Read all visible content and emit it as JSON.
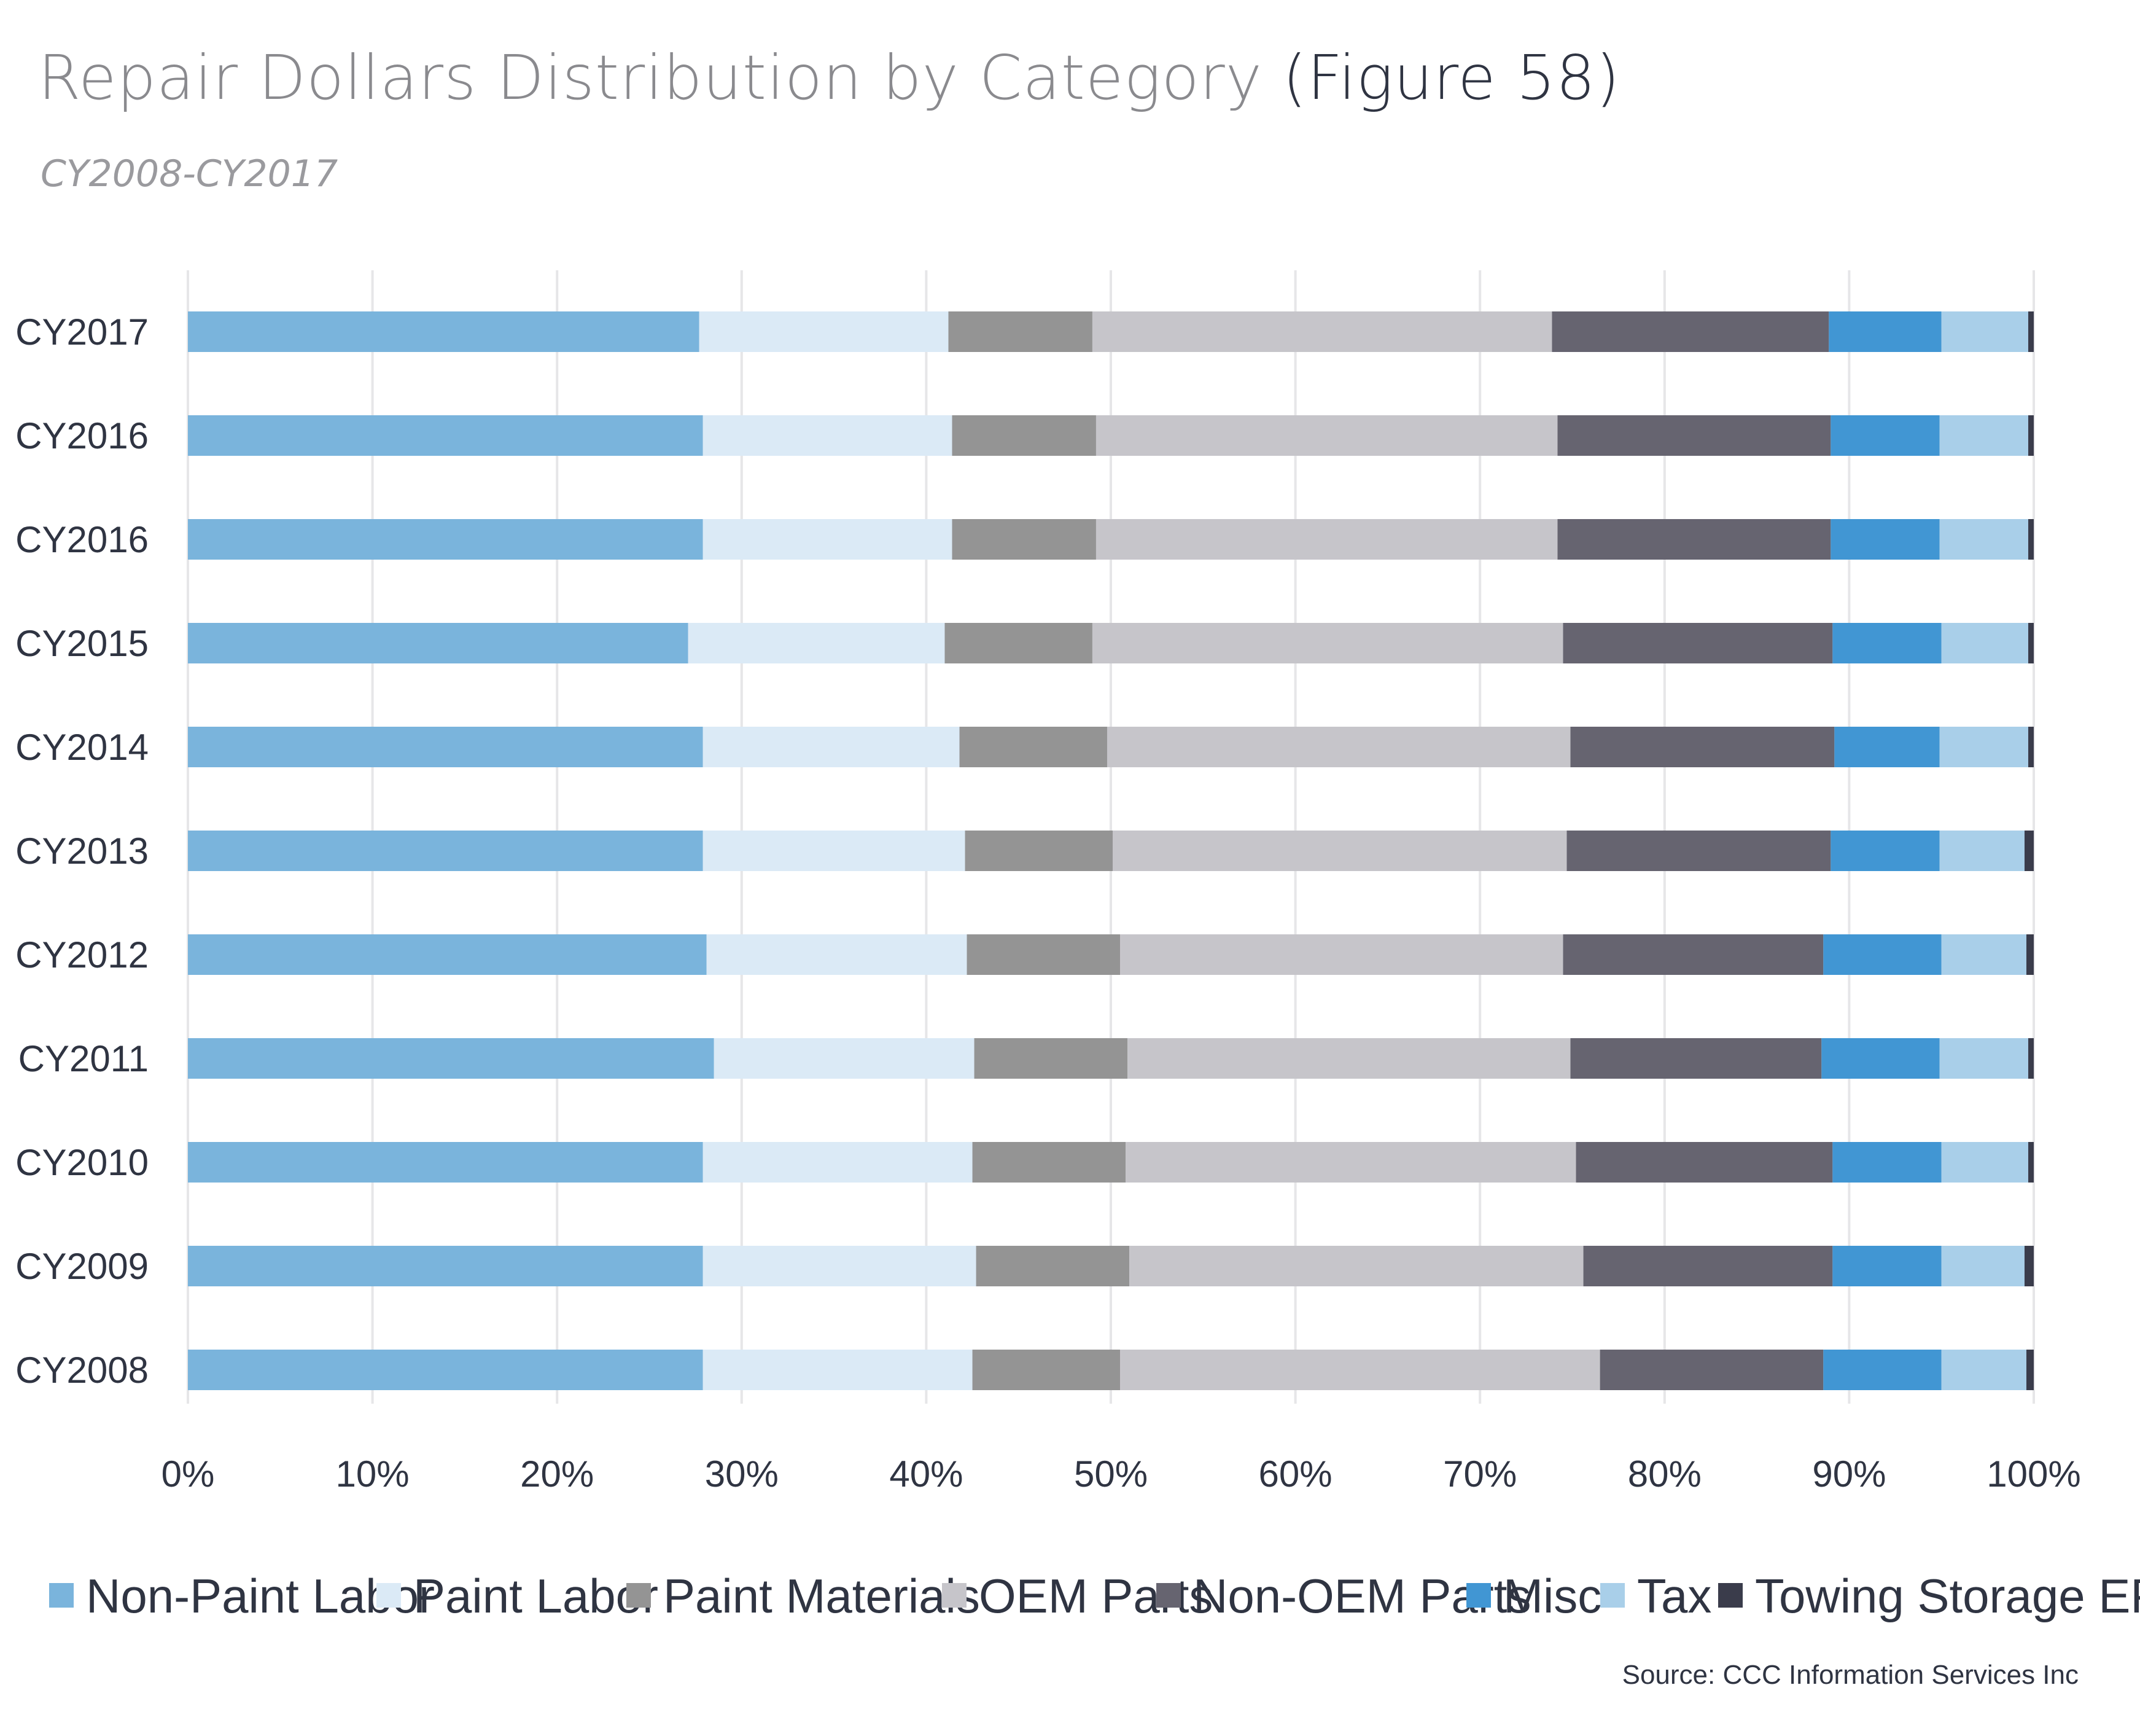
{
  "header": {
    "title": "Repair Dollars Distribution by Category",
    "figure_label": "(Figure 58)",
    "subtitle": "CY2008-CY2017"
  },
  "source": "Source:  CCC Information Services Inc",
  "chart_data": {
    "type": "bar",
    "orientation": "horizontal",
    "stacked": true,
    "title": "Repair Dollars Distribution by Category (Figure 58)",
    "subtitle": "CY2008-CY2017",
    "xlabel": "",
    "ylabel": "",
    "xlim": [
      0,
      100
    ],
    "x_ticks": [
      "0%",
      "10%",
      "20%",
      "30%",
      "40%",
      "50%",
      "60%",
      "70%",
      "80%",
      "90%",
      "100%"
    ],
    "grid": true,
    "legend_position": "bottom",
    "categories": [
      "CY2017",
      "CY2016",
      "CY2016",
      "CY2015",
      "CY2014",
      "CY2013",
      "CY2012",
      "CY2011",
      "CY2010",
      "CY2009",
      "CY2008"
    ],
    "series": [
      {
        "name": "Non-Paint Labor",
        "color": "#7ab4dc",
        "values": [
          27.7,
          27.9,
          27.9,
          27.1,
          27.9,
          27.9,
          28.1,
          28.5,
          27.9,
          27.9,
          27.9
        ]
      },
      {
        "name": "Paint Labor",
        "color": "#dbeaf6",
        "values": [
          13.5,
          13.5,
          13.5,
          13.9,
          13.9,
          14.2,
          14.1,
          14.1,
          14.6,
          14.8,
          14.6
        ]
      },
      {
        "name": "Paint Materials",
        "color": "#949494",
        "values": [
          7.8,
          7.8,
          7.8,
          8.0,
          8.0,
          8.0,
          8.3,
          8.3,
          8.3,
          8.3,
          8.0
        ]
      },
      {
        "name": "OEM Parts",
        "color": "#c6c5ca",
        "values": [
          24.9,
          25.0,
          25.0,
          25.5,
          25.1,
          24.6,
          24.0,
          24.0,
          24.4,
          24.6,
          26.0
        ]
      },
      {
        "name": "Non-OEM Parts",
        "color": "#666470",
        "values": [
          15.0,
          14.8,
          14.8,
          14.6,
          14.3,
          14.3,
          14.1,
          13.6,
          13.9,
          13.5,
          12.1
        ]
      },
      {
        "name": "Misc",
        "color": "#4196d3",
        "values": [
          6.1,
          5.9,
          5.9,
          5.9,
          5.7,
          5.9,
          6.4,
          6.4,
          5.9,
          5.9,
          6.4
        ]
      },
      {
        "name": "Tax",
        "color": "#a9cfe9",
        "values": [
          4.7,
          4.8,
          4.8,
          4.7,
          4.8,
          4.6,
          4.6,
          4.8,
          4.7,
          4.5,
          4.6
        ]
      },
      {
        "name": "Towing Storage EPC",
        "color": "#3a3c4b",
        "values": [
          0.3,
          0.3,
          0.3,
          0.3,
          0.3,
          0.5,
          0.4,
          0.3,
          0.3,
          0.5,
          0.4
        ]
      }
    ]
  }
}
